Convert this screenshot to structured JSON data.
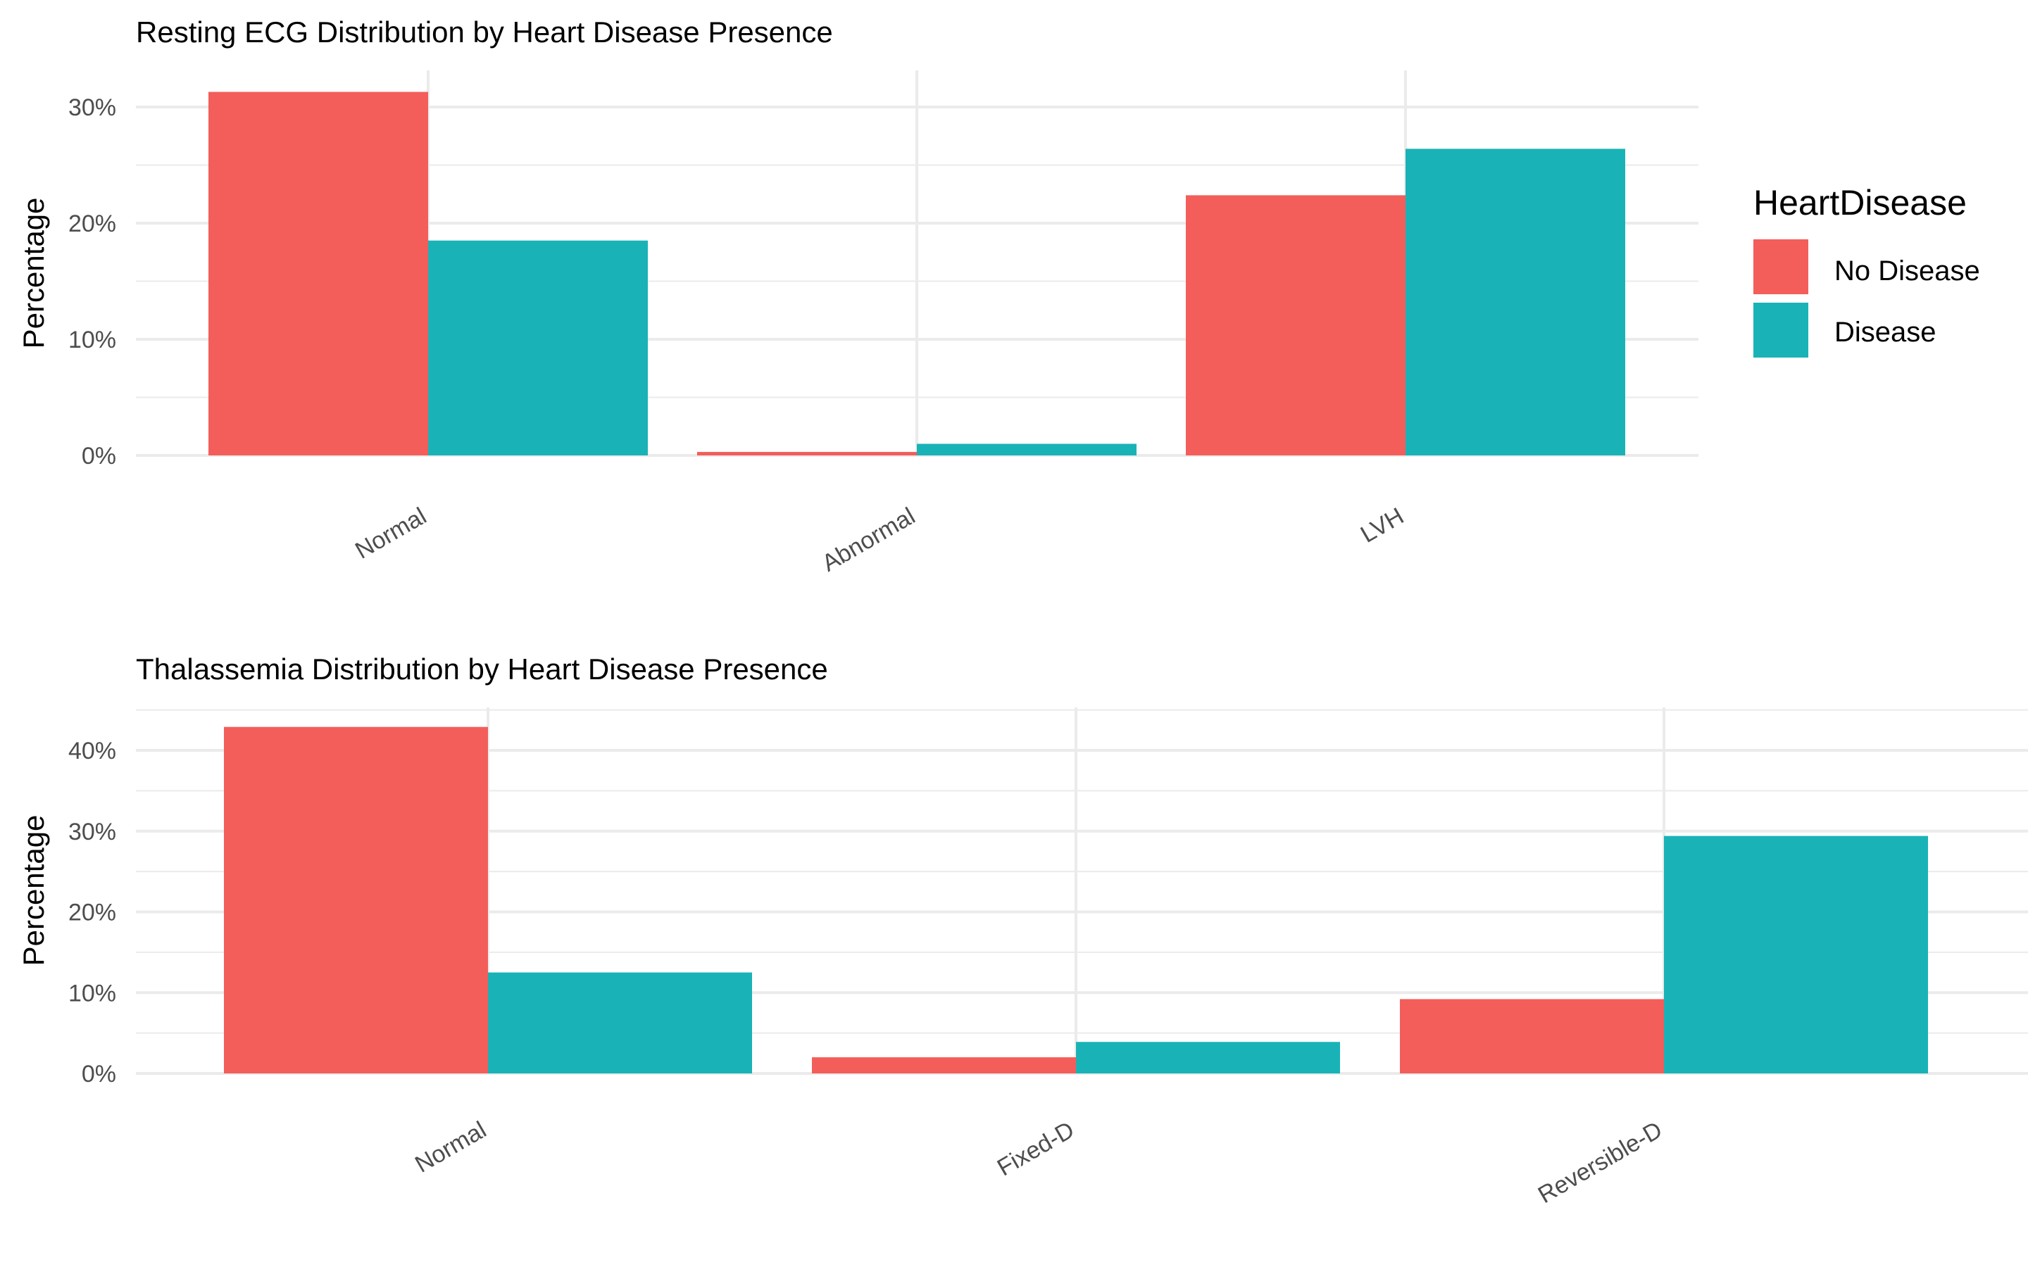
{
  "colors": {
    "no_disease": "#F35E5A",
    "disease": "#19B3B7",
    "grid": "#EBEBEB",
    "tick_text": "#4D4D4D"
  },
  "legend": {
    "title": "HeartDisease",
    "position": "right",
    "items": [
      {
        "label": "No Disease",
        "color": "#F35E5A"
      },
      {
        "label": "Disease",
        "color": "#19B3B7"
      }
    ]
  },
  "chart_data": [
    {
      "type": "bar",
      "title": "Resting ECG Distribution by Heart Disease Presence",
      "xlabel": "",
      "ylabel": "Percentage",
      "categories": [
        "Normal",
        "Abnormal",
        "LVH"
      ],
      "series": [
        {
          "name": "No Disease",
          "values": [
            31.3,
            0.3,
            22.4
          ]
        },
        {
          "name": "Disease",
          "values": [
            18.5,
            1.0,
            26.4
          ]
        }
      ],
      "ylim": [
        0,
        30
      ],
      "yticks": [
        "0%",
        "10%",
        "20%",
        "30%"
      ],
      "grid": true
    },
    {
      "type": "bar",
      "title": "Thalassemia Distribution by Heart Disease Presence",
      "xlabel": "",
      "ylabel": "Percentage",
      "categories": [
        "Normal",
        "Fixed-D",
        "Reversible-D"
      ],
      "series": [
        {
          "name": "No Disease",
          "values": [
            42.9,
            2.0,
            9.2
          ]
        },
        {
          "name": "Disease",
          "values": [
            12.5,
            3.9,
            29.4
          ]
        }
      ],
      "ylim": [
        0,
        40
      ],
      "yticks": [
        "0%",
        "10%",
        "20%",
        "30%",
        "40%"
      ],
      "grid": true
    }
  ]
}
